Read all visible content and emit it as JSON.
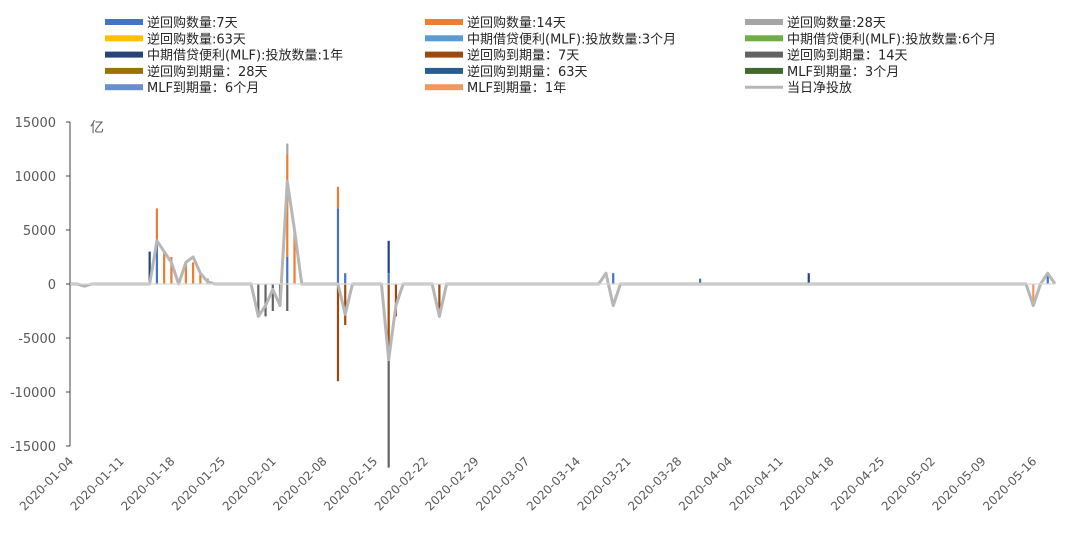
{
  "chart_data": {
    "type": "bar",
    "ylabel": "亿",
    "ylim": [
      -15000,
      15000
    ],
    "yticks": [
      15000,
      10000,
      5000,
      0,
      -5000,
      -10000,
      -15000
    ],
    "x_tick_labels": [
      "2020-01-04",
      "2020-01-11",
      "2020-01-18",
      "2020-01-25",
      "2020-02-01",
      "2020-02-08",
      "2020-02-15",
      "2020-02-22",
      "2020-02-29",
      "2020-03-07",
      "2020-03-14",
      "2020-03-21",
      "2020-03-28",
      "2020-04-04",
      "2020-04-11",
      "2020-04-18",
      "2020-04-25",
      "2020-05-02",
      "2020-05-09",
      "2020-05-16"
    ],
    "x_range": [
      "2020-01-04",
      "2020-05-19"
    ],
    "legend_position": "top",
    "grid": false,
    "series": [
      {
        "name": "逆回购数量:7天",
        "color": "#4472c4",
        "kind": "bar",
        "points": [
          [
            "2020-01-16",
            4000
          ],
          [
            "2020-02-03",
            2500
          ],
          [
            "2020-02-10",
            7000
          ],
          [
            "2020-02-11",
            1000
          ],
          [
            "2020-02-17",
            1000
          ],
          [
            "2020-03-19",
            1000
          ],
          [
            "2020-03-31",
            500
          ],
          [
            "2020-05-18",
            1000
          ]
        ]
      },
      {
        "name": "逆回购数量:14天",
        "color": "#ed7d31",
        "kind": "bar",
        "points": [
          [
            "2020-01-16",
            3000
          ],
          [
            "2020-01-17",
            3000
          ],
          [
            "2020-01-18",
            2500
          ],
          [
            "2020-01-20",
            2000
          ],
          [
            "2020-01-21",
            2000
          ],
          [
            "2020-01-22",
            1000
          ],
          [
            "2020-01-23",
            500
          ],
          [
            "2020-02-03",
            9500
          ],
          [
            "2020-02-04",
            5000
          ],
          [
            "2020-02-10",
            2000
          ]
        ]
      },
      {
        "name": "逆回购数量:28天",
        "color": "#a5a5a5",
        "kind": "bar",
        "points": [
          [
            "2020-02-03",
            1000
          ]
        ]
      },
      {
        "name": "逆回购数量:63天",
        "color": "#ffc000",
        "kind": "bar",
        "points": []
      },
      {
        "name": "中期借贷便利(MLF):投放数量:3个月",
        "color": "#5b9bd5",
        "kind": "bar",
        "points": []
      },
      {
        "name": "中期借贷便利(MLF):投放数量:6个月",
        "color": "#70ad47",
        "kind": "bar",
        "points": []
      },
      {
        "name": "中期借贷便利(MLF):投放数量:1年",
        "color": "#264478",
        "kind": "bar",
        "points": [
          [
            "2020-01-15",
            3000
          ],
          [
            "2020-02-17",
            3000
          ],
          [
            "2020-04-15",
            1000
          ]
        ]
      },
      {
        "name": "逆回购到期量：7天",
        "color": "#9e480e",
        "kind": "bar",
        "points": [
          [
            "2020-02-10",
            -9000
          ],
          [
            "2020-02-11",
            -3800
          ],
          [
            "2020-02-17",
            -7000
          ],
          [
            "2020-02-18",
            -3000
          ],
          [
            "2020-02-24",
            -3000
          ]
        ]
      },
      {
        "name": "逆回购到期量：14天",
        "color": "#636363",
        "kind": "bar",
        "points": [
          [
            "2020-01-30",
            -3000
          ],
          [
            "2020-01-31",
            -3000
          ],
          [
            "2020-02-01",
            -2500
          ],
          [
            "2020-02-02",
            -2000
          ],
          [
            "2020-02-03",
            -2500
          ],
          [
            "2020-02-17",
            -10000
          ]
        ]
      },
      {
        "name": "逆回购到期量：28天",
        "color": "#997300",
        "kind": "bar",
        "points": []
      },
      {
        "name": "逆回购到期量：63天",
        "color": "#255e91",
        "kind": "bar",
        "points": []
      },
      {
        "name": "MLF到期量：3个月",
        "color": "#43682b",
        "kind": "bar",
        "points": []
      },
      {
        "name": "MLF到期量：6个月",
        "color": "#698ed0",
        "kind": "bar",
        "points": []
      },
      {
        "name": "MLF到期量：1年",
        "color": "#f1975a",
        "kind": "bar",
        "points": [
          [
            "2020-05-16",
            -2000
          ]
        ]
      },
      {
        "name": "当日净投放",
        "color": "#b7b7b7",
        "kind": "line",
        "points": [
          [
            "2020-01-04",
            0
          ],
          [
            "2020-01-05",
            0
          ],
          [
            "2020-01-06",
            -200
          ],
          [
            "2020-01-07",
            0
          ],
          [
            "2020-01-14",
            0
          ],
          [
            "2020-01-15",
            0
          ],
          [
            "2020-01-16",
            4000
          ],
          [
            "2020-01-17",
            3000
          ],
          [
            "2020-01-18",
            2000
          ],
          [
            "2020-01-19",
            0
          ],
          [
            "2020-01-20",
            2000
          ],
          [
            "2020-01-21",
            2500
          ],
          [
            "2020-01-22",
            1000
          ],
          [
            "2020-01-23",
            200
          ],
          [
            "2020-01-24",
            0
          ],
          [
            "2020-01-29",
            0
          ],
          [
            "2020-01-30",
            -3000
          ],
          [
            "2020-01-31",
            -2000
          ],
          [
            "2020-02-01",
            -500
          ],
          [
            "2020-02-02",
            -2000
          ],
          [
            "2020-02-03",
            9500
          ],
          [
            "2020-02-04",
            5000
          ],
          [
            "2020-02-05",
            0
          ],
          [
            "2020-02-06",
            0
          ],
          [
            "2020-02-09",
            0
          ],
          [
            "2020-02-10",
            0
          ],
          [
            "2020-02-11",
            -2800
          ],
          [
            "2020-02-12",
            0
          ],
          [
            "2020-02-16",
            0
          ],
          [
            "2020-02-17",
            -7000
          ],
          [
            "2020-02-18",
            -2000
          ],
          [
            "2020-02-19",
            0
          ],
          [
            "2020-02-23",
            0
          ],
          [
            "2020-02-24",
            -3000
          ],
          [
            "2020-02-25",
            0
          ],
          [
            "2020-03-17",
            0
          ],
          [
            "2020-03-18",
            1000
          ],
          [
            "2020-03-19",
            -2000
          ],
          [
            "2020-03-20",
            0
          ],
          [
            "2020-05-15",
            0
          ],
          [
            "2020-05-16",
            -2000
          ],
          [
            "2020-05-17",
            0
          ],
          [
            "2020-05-18",
            1000
          ],
          [
            "2020-05-19",
            0
          ]
        ]
      }
    ]
  }
}
